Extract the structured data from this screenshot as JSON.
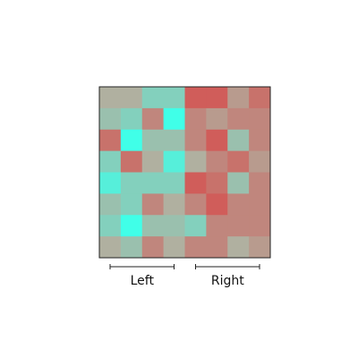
{
  "chart_data": {
    "type": "heatmap",
    "title": "",
    "xlabel": "",
    "ylabel": "",
    "rows": 8,
    "cols": 8,
    "grid": false,
    "legend": "none",
    "groups": [
      {
        "label": "Left",
        "col_start": 0,
        "col_end": 3
      },
      {
        "label": "Right",
        "col_start": 4,
        "col_end": 7
      }
    ],
    "scale": {
      "min": 0,
      "max": 1,
      "low_color": "#40ffe8",
      "mid_color": "#b0b0a0",
      "high_color": "#d84848"
    },
    "values": [
      [
        0.5,
        0.5,
        0.3,
        0.3,
        0.9,
        0.9,
        0.6,
        0.8
      ],
      [
        0.4,
        0.3,
        0.7,
        0.0,
        0.7,
        0.6,
        0.7,
        0.7
      ],
      [
        0.8,
        0.0,
        0.4,
        0.4,
        0.7,
        0.9,
        0.4,
        0.7
      ],
      [
        0.3,
        0.8,
        0.5,
        0.1,
        0.5,
        0.7,
        0.8,
        0.6
      ],
      [
        0.1,
        0.3,
        0.3,
        0.3,
        0.9,
        0.8,
        0.4,
        0.7
      ],
      [
        0.4,
        0.3,
        0.7,
        0.5,
        0.7,
        0.9,
        0.7,
        0.7
      ],
      [
        0.3,
        0.0,
        0.4,
        0.4,
        0.3,
        0.7,
        0.7,
        0.7
      ],
      [
        0.5,
        0.4,
        0.7,
        0.5,
        0.7,
        0.7,
        0.5,
        0.6
      ]
    ]
  }
}
